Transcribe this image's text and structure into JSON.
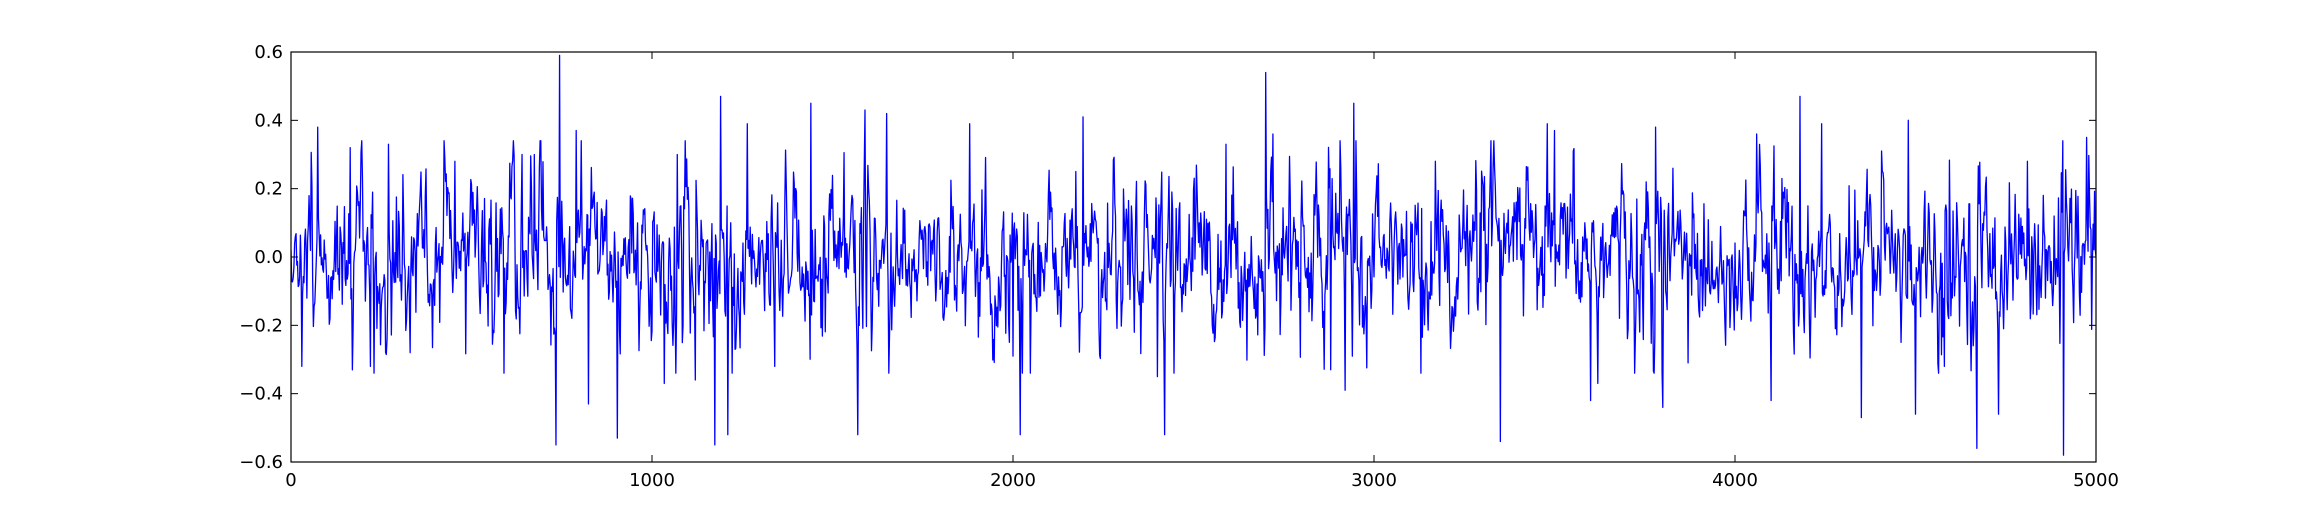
{
  "chart_data": {
    "type": "line",
    "title": "",
    "xlabel": "",
    "ylabel": "",
    "xlim": [
      0,
      5000
    ],
    "ylim": [
      -0.6,
      0.6
    ],
    "x_ticks": [
      0,
      1000,
      2000,
      3000,
      4000,
      5000
    ],
    "y_ticks": [
      -0.6,
      -0.4,
      -0.2,
      0.0,
      0.2,
      0.4,
      0.6
    ],
    "x_tick_labels": [
      "0",
      "1000",
      "2000",
      "3000",
      "4000",
      "5000"
    ],
    "y_tick_labels": [
      "−0.6",
      "−0.4",
      "−0.2",
      "0.0",
      "0.2",
      "0.4",
      "0.6"
    ],
    "grid": false,
    "legend": "none",
    "line_color": "#0000ff",
    "series_description": "noise signal, about 5000 samples, mostly within ±0.25 with spikes",
    "series": [
      {
        "x": [
          0,
          30,
          75,
          165,
          220,
          270,
          330,
          455,
          590,
          640,
          675,
          735,
          745,
          790,
          825,
          905,
          1035,
          1070,
          1120,
          1175,
          1190,
          1210,
          1265,
          1340,
          1440,
          1570,
          1590,
          1650,
          1880,
          2000,
          2020,
          2175,
          2195,
          2400,
          2420,
          2590,
          2700,
          2720,
          2880,
          2920,
          2945,
          3130,
          3170,
          3350,
          3480,
          3500,
          3600,
          3620,
          3780,
          3800,
          3870,
          4060,
          4100,
          4180,
          4240,
          4350,
          4480,
          4500,
          4580,
          4670,
          4730,
          4810,
          4910,
          4975,
          5000
        ],
        "values": [
          0.02,
          -0.32,
          0.38,
          0.32,
          -0.32,
          0.33,
          -0.28,
          0.28,
          -0.34,
          0.3,
          0.3,
          -0.55,
          0.59,
          0.37,
          -0.43,
          -0.53,
          -0.37,
          0.3,
          -0.36,
          -0.55,
          0.47,
          -0.52,
          0.39,
          -0.32,
          0.45,
          -0.52,
          0.43,
          0.42,
          0.39,
          -0.29,
          -0.52,
          0.25,
          0.41,
          -0.35,
          -0.52,
          0.33,
          0.54,
          0.36,
          -0.33,
          -0.39,
          0.45,
          -0.34,
          0.28,
          -0.54,
          0.39,
          0.37,
          -0.42,
          -0.37,
          0.38,
          -0.44,
          -0.31,
          0.36,
          -0.42,
          0.47,
          0.39,
          -0.47,
          0.4,
          -0.46,
          -0.32,
          -0.56,
          -0.46,
          0.28,
          -0.58,
          0.35,
          0.0
        ]
      }
    ]
  }
}
